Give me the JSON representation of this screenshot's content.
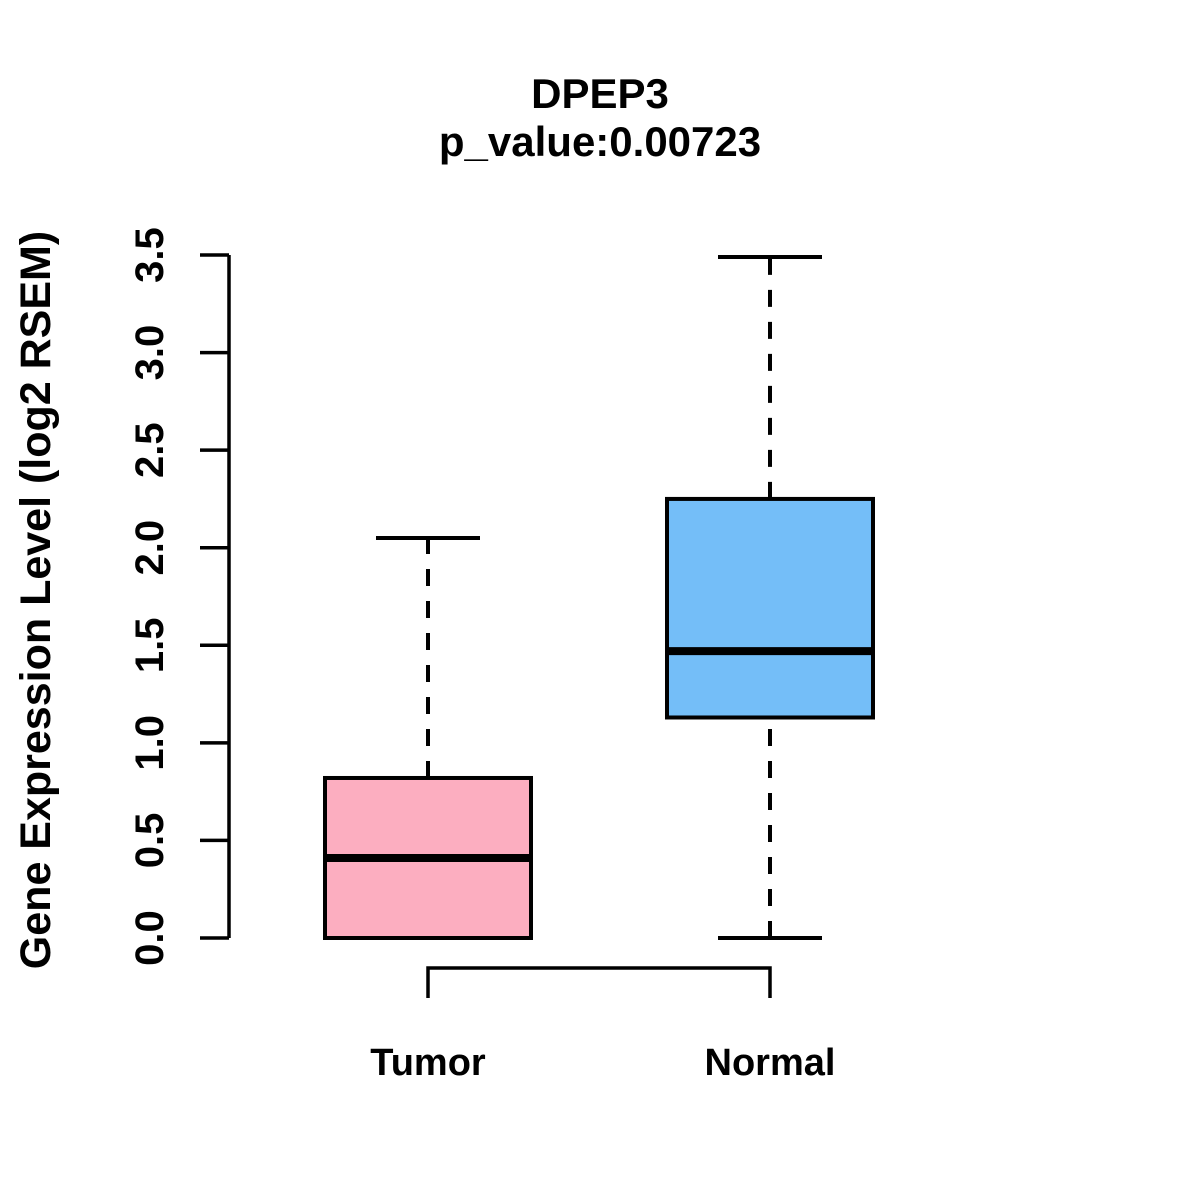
{
  "chart_data": {
    "type": "boxplot",
    "title": "DPEP3",
    "subtitle": "p_value:0.00723",
    "ylabel": "Gene Expression Level (log2 RSEM)",
    "categories": [
      "Tumor",
      "Normal"
    ],
    "series": [
      {
        "name": "Tumor",
        "min": 0.0,
        "q1": 0.0,
        "median": 0.41,
        "q3": 0.82,
        "max": 2.05,
        "fill": "#FCAEC0"
      },
      {
        "name": "Normal",
        "min": 0.0,
        "q1": 1.13,
        "median": 1.47,
        "q3": 2.25,
        "max": 3.49,
        "fill": "#74BEF8"
      }
    ],
    "ylim": [
      0,
      3.5
    ],
    "ytick_labels": [
      "0.0",
      "0.5",
      "1.0",
      "1.5",
      "2.0",
      "2.5",
      "3.0",
      "3.5"
    ],
    "grid": false,
    "legend": false,
    "stroke_color": "#000000",
    "background": "#FFFFFF"
  }
}
